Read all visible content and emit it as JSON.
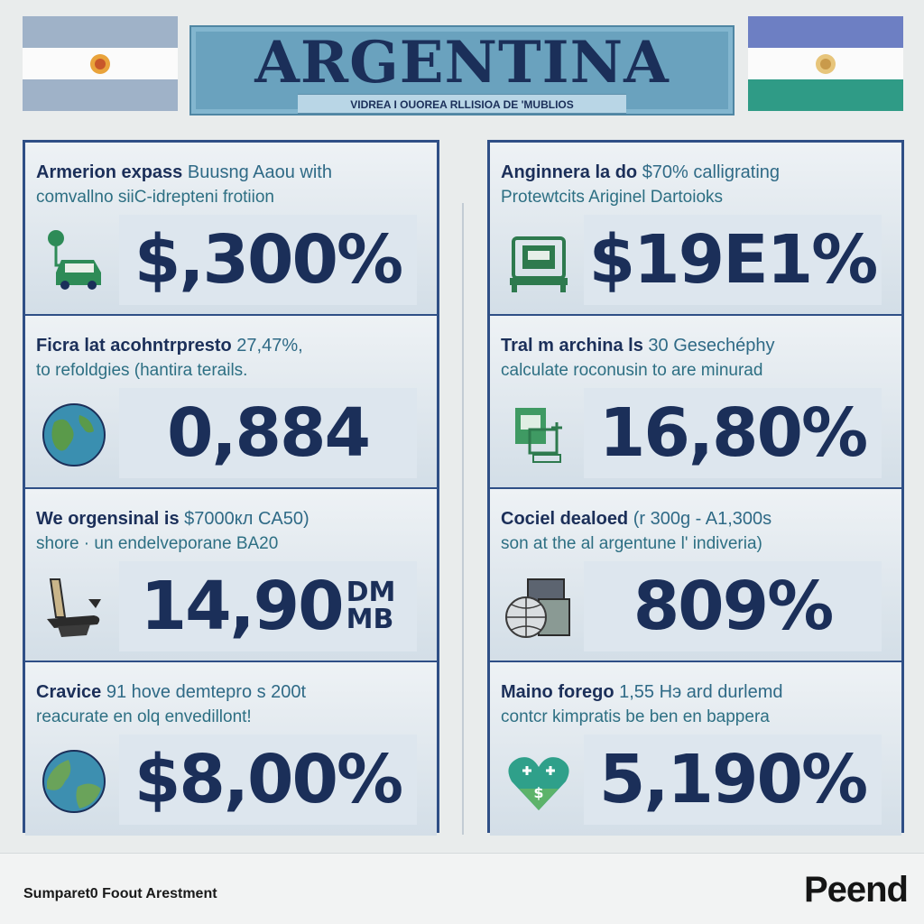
{
  "header": {
    "title": "ARGENTINA",
    "subtitle": "VIDREA I OUOREA RLLISIOA DE 'MUBLIOS"
  },
  "colors": {
    "navy": "#1b2f59",
    "frame_blue": "#2f4f86",
    "banner_blue": "#6aa2be",
    "flag_blue": "#9bb3cc",
    "flag_green": "#2c9a82",
    "icon_green": "#2e8b57"
  },
  "left_column": [
    {
      "line1_lead": "Armerion expass",
      "line1_rest": "Buusng Aaou with",
      "line2": "comvallno siiC-idrepteni frotiion",
      "value": "$,300%",
      "icon": "car-charging-icon"
    },
    {
      "line1_lead": "Ficra lat acohntrpresto",
      "line1_rest": "27,47%,",
      "line2": "to refoldgies (hantira terails.",
      "value": "0,884",
      "icon": "globe-map-icon"
    },
    {
      "line1_lead": "We orgensinal is",
      "line1_rest": "$7000кл CA50)",
      "line2": "shore · un endelveporane BA20",
      "value": "14,90",
      "value_suffix_top": "DM",
      "value_suffix_bottom": "MB",
      "icon": "anvil-icon"
    },
    {
      "line1_lead": "Cravice",
      "line1_rest": "91 hove demtepro s 200t",
      "line2": "reacurate en olq envedillont!",
      "value": "$8,00%",
      "icon": "earth-icon"
    }
  ],
  "right_column": [
    {
      "line1_lead": "Anginnera la do",
      "line1_rest": "$70% calligrating",
      "line2": "Protewtcits Ariginel Dartoioks",
      "value": "$19E1%",
      "icon": "factory-machine-icon"
    },
    {
      "line1_lead": "Tral m archina ls",
      "line1_rest": "30 Geseсhéphy",
      "line2": "calculate roconusin to are minurad",
      "value": "16,80%",
      "icon": "medical-document-icon"
    },
    {
      "line1_lead": "Cociel dealoed",
      "line1_rest": "(r 300g - A1,300s",
      "line2": "son at the al argentune l' indiveria)",
      "value": "809%",
      "icon": "globe-grid-icon"
    },
    {
      "line1_lead": "Maino forego",
      "line1_rest": "1,55 Hэ ard durlemd",
      "line2": "contcr kimpratis be ben en bappera",
      "value": "5,190%",
      "icon": "heart-money-icon"
    }
  ],
  "footer": {
    "label": "Sumparet0 Foout Arestment",
    "brand": "Peend"
  }
}
